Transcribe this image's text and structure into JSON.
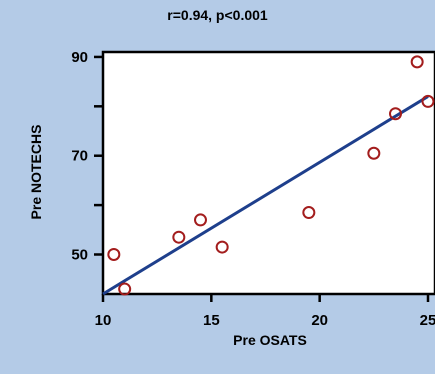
{
  "chart_data": {
    "type": "scatter",
    "title": "r=0.94, p<0.001",
    "xlabel": "Pre OSATS",
    "ylabel": "Pre NOTECHS",
    "xlim": [
      10,
      25
    ],
    "ylim": [
      42,
      91
    ],
    "x_ticks": [
      10,
      15,
      20,
      25
    ],
    "y_ticks": [
      50,
      60,
      70,
      80,
      90
    ],
    "y_tick_labels": [
      "50",
      "",
      "70",
      "",
      "90"
    ],
    "points": [
      {
        "x": 10.5,
        "y": 50
      },
      {
        "x": 11.0,
        "y": 43
      },
      {
        "x": 13.5,
        "y": 53.5
      },
      {
        "x": 14.5,
        "y": 57
      },
      {
        "x": 15.5,
        "y": 51.5
      },
      {
        "x": 19.5,
        "y": 58.5
      },
      {
        "x": 22.5,
        "y": 70.5
      },
      {
        "x": 23.5,
        "y": 78.5
      },
      {
        "x": 24.5,
        "y": 89
      },
      {
        "x": 25.0,
        "y": 81
      }
    ],
    "regression_line": {
      "x": [
        10,
        25
      ],
      "y": [
        42,
        82
      ]
    },
    "colors": {
      "points": "#a31d1d",
      "line": "#1e3f8c",
      "background": "#b4cbe7",
      "plot_area": "#ffffff"
    }
  }
}
